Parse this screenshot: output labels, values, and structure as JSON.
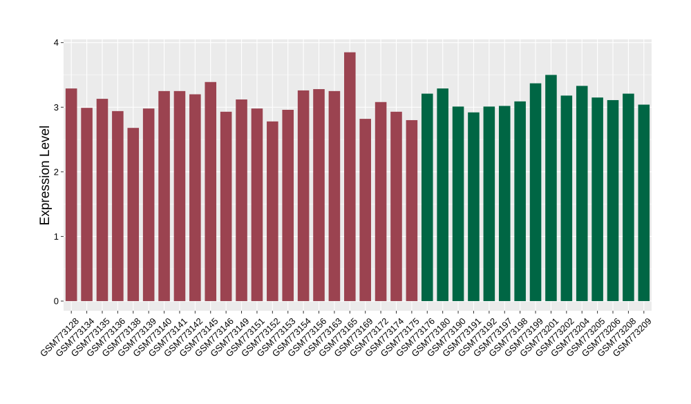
{
  "chart_data": {
    "type": "bar",
    "title": "",
    "xlabel": "",
    "ylabel": "Expression Level",
    "ylim": [
      -0.15,
      4.05
    ],
    "yticks": [
      0,
      1,
      2,
      3,
      4
    ],
    "grid": true,
    "legend": "none",
    "panel_background": "#ebebeb",
    "grid_color": "#ffffff",
    "categories": [
      "GSM773128",
      "GSM773134",
      "GSM773135",
      "GSM773136",
      "GSM773138",
      "GSM773139",
      "GSM773140",
      "GSM773141",
      "GSM773142",
      "GSM773145",
      "GSM773146",
      "GSM773149",
      "GSM773151",
      "GSM773152",
      "GSM773153",
      "GSM773154",
      "GSM773156",
      "GSM773163",
      "GSM773165",
      "GSM773169",
      "GSM773172",
      "GSM773174",
      "GSM773175",
      "GSM773176",
      "GSM773180",
      "GSM773190",
      "GSM773191",
      "GSM773192",
      "GSM773197",
      "GSM773198",
      "GSM773199",
      "GSM773201",
      "GSM773202",
      "GSM773204",
      "GSM773205",
      "GSM773206",
      "GSM773208",
      "GSM773209"
    ],
    "values": [
      3.29,
      2.99,
      3.13,
      2.94,
      2.68,
      2.98,
      3.25,
      3.25,
      3.2,
      3.39,
      2.93,
      3.12,
      2.98,
      2.78,
      2.96,
      3.26,
      3.28,
      3.25,
      3.85,
      2.82,
      3.08,
      2.93,
      2.8,
      3.21,
      3.29,
      3.01,
      2.92,
      3.01,
      3.02,
      3.09,
      3.37,
      3.5,
      3.18,
      3.33,
      3.15,
      3.11,
      3.21,
      3.04
    ],
    "bar_colors": [
      "#9b4350",
      "#9b4350",
      "#9b4350",
      "#9b4350",
      "#9b4350",
      "#9b4350",
      "#9b4350",
      "#9b4350",
      "#9b4350",
      "#9b4350",
      "#9b4350",
      "#9b4350",
      "#9b4350",
      "#9b4350",
      "#9b4350",
      "#9b4350",
      "#9b4350",
      "#9b4350",
      "#9b4350",
      "#9b4350",
      "#9b4350",
      "#9b4350",
      "#9b4350",
      "#006644",
      "#006644",
      "#006644",
      "#006644",
      "#006644",
      "#006644",
      "#006644",
      "#006644",
      "#006644",
      "#006644",
      "#006644",
      "#006644",
      "#006644",
      "#006644",
      "#006644"
    ]
  }
}
